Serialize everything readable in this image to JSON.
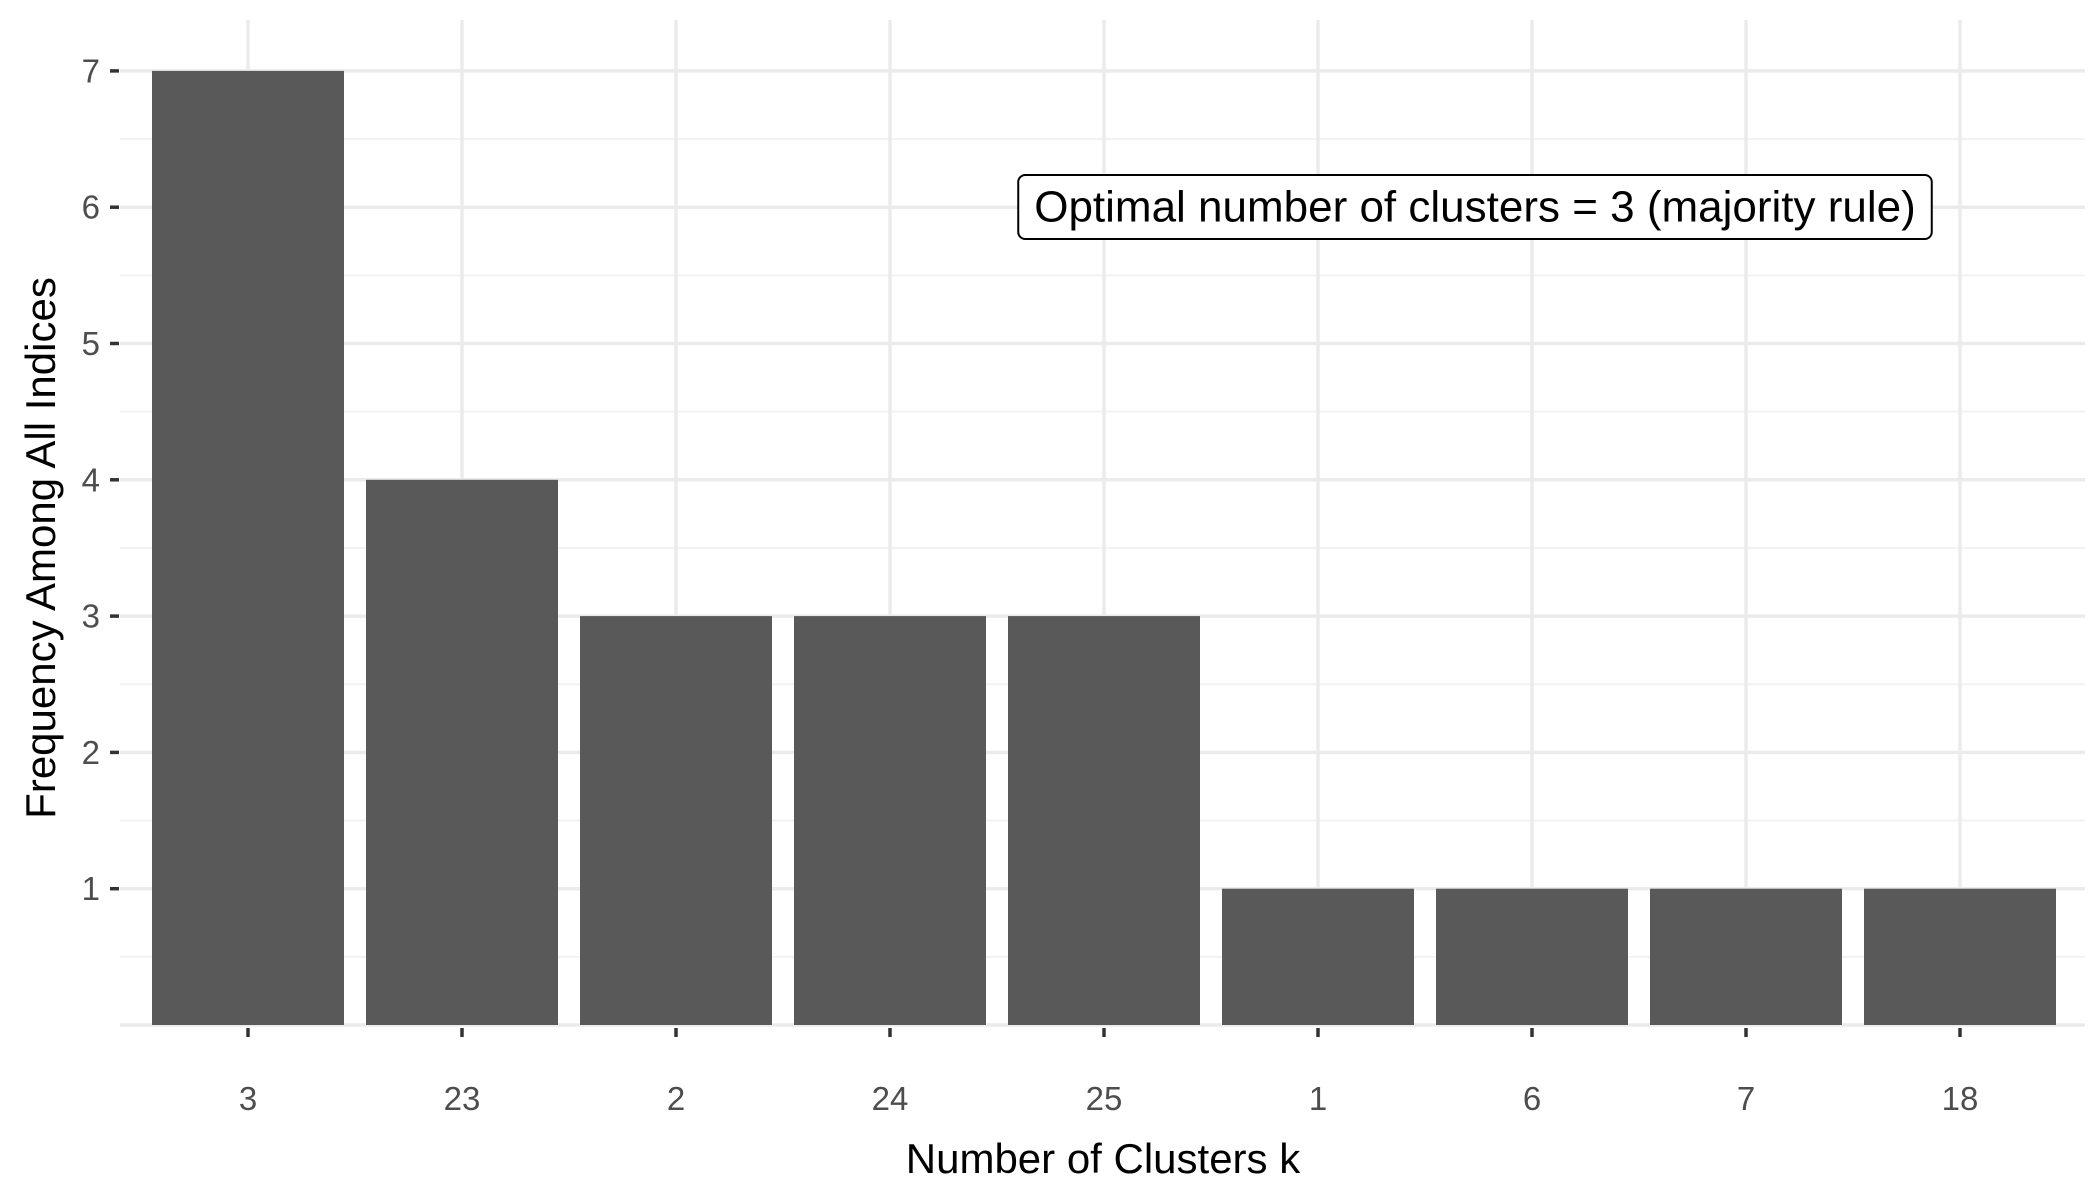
{
  "chart_data": {
    "type": "bar",
    "title": "",
    "xlabel": "Number of Clusters k",
    "ylabel": "Frequency Among All Indices",
    "categories": [
      "3",
      "23",
      "2",
      "24",
      "25",
      "1",
      "6",
      "7",
      "18"
    ],
    "values": [
      7,
      4,
      3,
      3,
      3,
      1,
      1,
      1,
      1
    ],
    "ylim": [
      0,
      7
    ],
    "yticks": [
      "1",
      "2",
      "3",
      "4",
      "5",
      "6",
      "7"
    ],
    "grid": true,
    "legend": "none",
    "annotation": {
      "text": "Optimal number of clusters =  3 (majority rule)"
    },
    "colors": {
      "bar": "#595959",
      "grid_major": "#ebebeb",
      "grid_minor": "#f2f2f2",
      "tick_text": "#4d4d4d",
      "axis_text": "#000000",
      "background": "#ffffff"
    }
  }
}
